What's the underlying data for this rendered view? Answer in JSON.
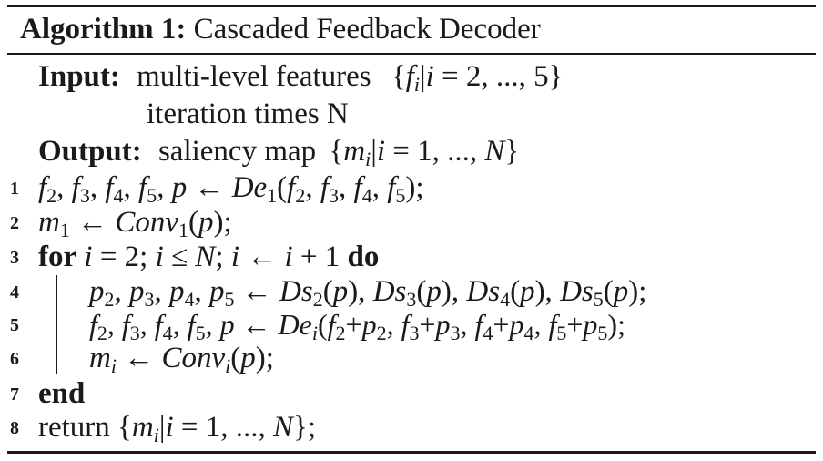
{
  "algorithm": {
    "label": "Algorithm 1:",
    "name": "Cascaded Feedback Decoder",
    "input": {
      "label": "Input:",
      "line1_text": "multi-level features",
      "line1_math": "{f_i | i = 2, ..., 5}",
      "line2": "iteration times N"
    },
    "output": {
      "label": "Output:",
      "text": "saliency map",
      "math": "{m_i | i = 1, ..., N}"
    },
    "lines": [
      {
        "num": "1",
        "text": "f2, f3, f4, f5, p ← De1(f2, f3, f4, f5);"
      },
      {
        "num": "2",
        "text": "m1 ← Conv1(p);"
      },
      {
        "num": "3",
        "keyword": "for",
        "text": "i = 2; i ≤ N; i ← i + 1",
        "keyword_end": "do"
      },
      {
        "num": "4",
        "text": "p2, p3, p4, p5 ← Ds2(p), Ds3(p), Ds4(p), Ds5(p);"
      },
      {
        "num": "5",
        "text": "f2, f3, f4, f5, p ← Dei(f2+p2, f3+p3, f4+p4, f5+p5);"
      },
      {
        "num": "6",
        "text": "mi ← Convi(p);"
      },
      {
        "num": "7",
        "keyword": "end"
      },
      {
        "num": "8",
        "keyword": "return",
        "text": "{mi|i = 1, ..., N};"
      }
    ]
  }
}
